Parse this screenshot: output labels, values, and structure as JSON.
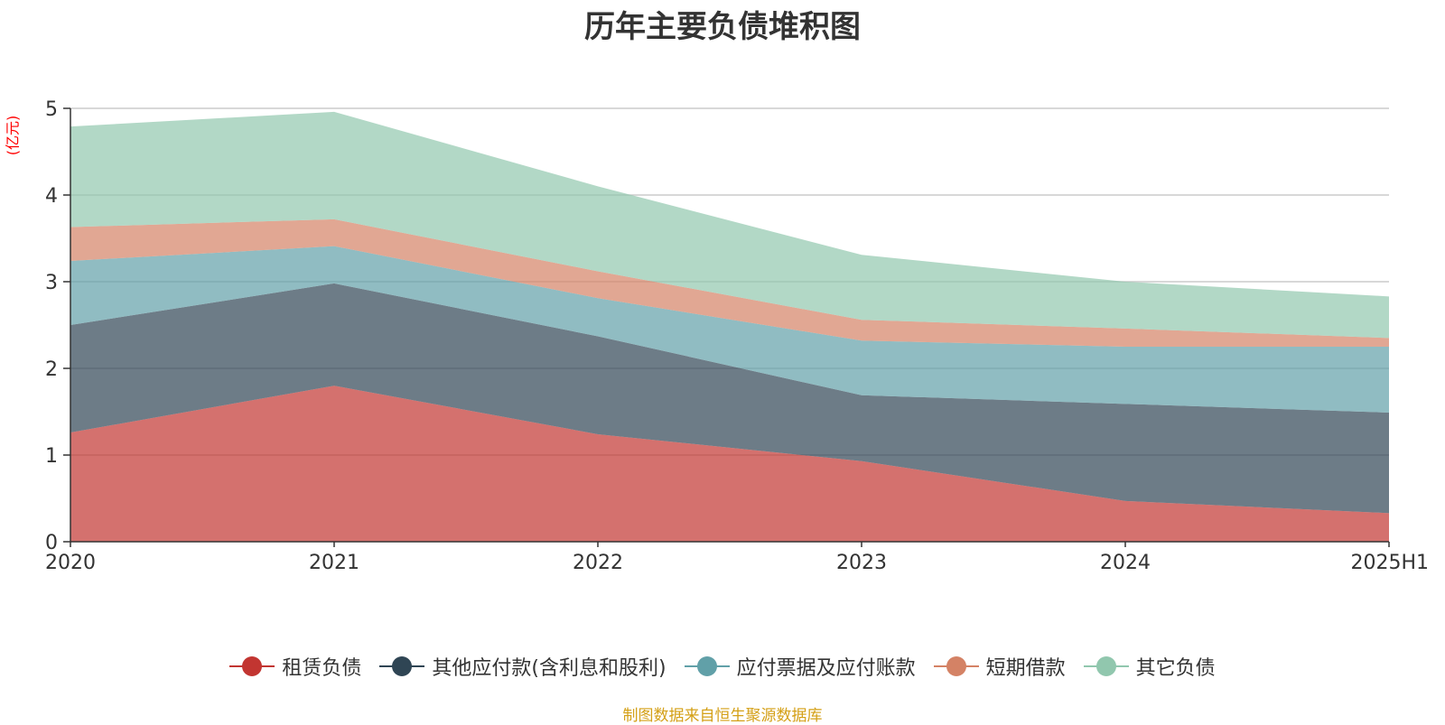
{
  "chart_data": {
    "type": "area",
    "stacked": true,
    "title": "历年主要负债堆积图",
    "ylabel": "(亿元)",
    "xlabel": "",
    "categories": [
      "2020",
      "2021",
      "2022",
      "2023",
      "2024",
      "2025H1"
    ],
    "ylim": [
      0,
      5
    ],
    "yticks": [
      0,
      1,
      2,
      3,
      4,
      5
    ],
    "grid": true,
    "legend_position": "bottom",
    "series": [
      {
        "name": "租赁负债",
        "color": "#c23531",
        "values": [
          1.26,
          1.8,
          1.24,
          0.93,
          0.47,
          0.33
        ]
      },
      {
        "name": "其他应付款(含利息和股利)",
        "color": "#2f4554",
        "values": [
          1.24,
          1.18,
          1.13,
          0.76,
          1.12,
          1.16
        ]
      },
      {
        "name": "应付票据及应付账款",
        "color": "#61a0a8",
        "values": [
          0.74,
          0.43,
          0.44,
          0.63,
          0.66,
          0.76
        ]
      },
      {
        "name": "短期借款",
        "color": "#d48265",
        "values": [
          0.39,
          0.31,
          0.31,
          0.24,
          0.21,
          0.1
        ]
      },
      {
        "name": "其它负债",
        "color": "#91c7ae",
        "values": [
          1.16,
          1.24,
          0.98,
          0.75,
          0.54,
          0.48
        ]
      }
    ],
    "source_note": "制图数据来自恒生聚源数据库"
  }
}
